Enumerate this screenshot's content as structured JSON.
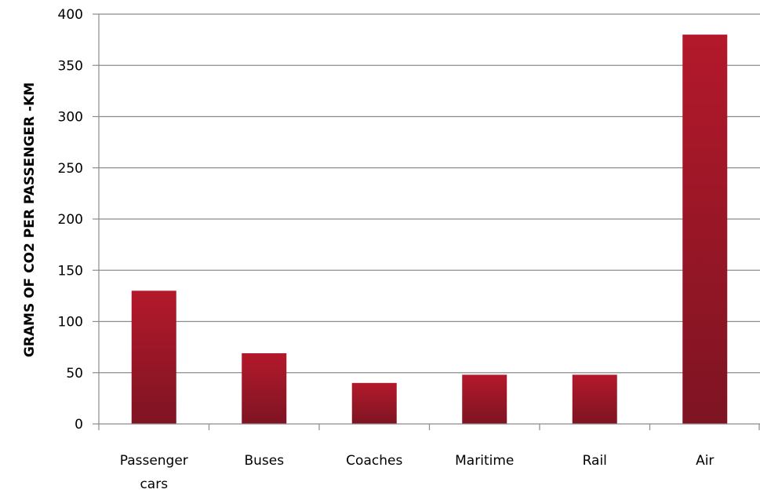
{
  "chart_data": {
    "type": "bar",
    "categories": [
      [
        "Passenger",
        "cars"
      ],
      [
        "Buses"
      ],
      [
        "Coaches"
      ],
      [
        "Maritime"
      ],
      [
        "Rail"
      ],
      [
        "Air"
      ]
    ],
    "values": [
      130,
      69,
      40,
      48,
      48,
      380
    ],
    "ylabel": "GRAMS OF CO2 PER PASSENGER -KM",
    "xlabel": "",
    "ylim": [
      0,
      400
    ],
    "yticks": [
      0,
      50,
      100,
      150,
      200,
      250,
      300,
      350,
      400
    ],
    "grid": true,
    "colors": {
      "bar_light": "#b3192b",
      "bar_dark": "#7e1422",
      "grid": "#8c8c8c",
      "axis": "#8c8c8c"
    }
  }
}
